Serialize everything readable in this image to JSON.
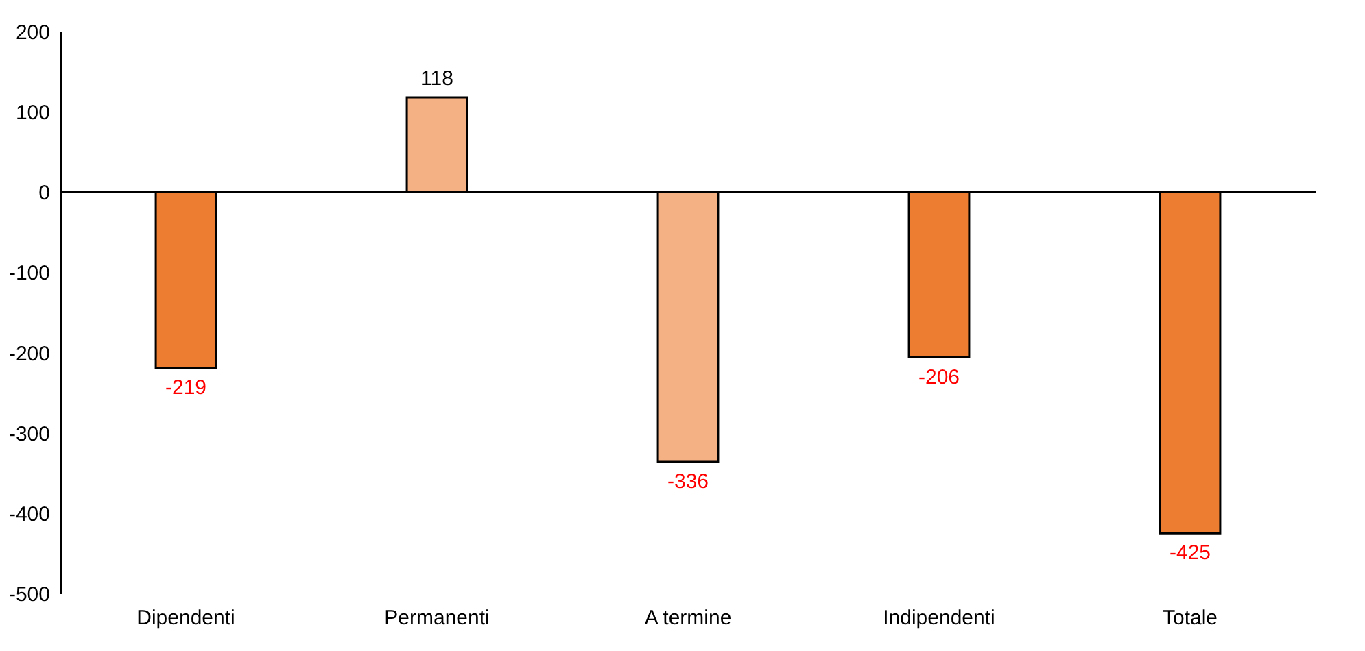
{
  "chart_data": {
    "type": "bar",
    "categories": [
      "Dipendenti",
      "Permanenti",
      "A termine",
      "Indipendenti",
      "Totale"
    ],
    "values": [
      -219,
      118,
      -336,
      -206,
      -425
    ],
    "colors": [
      "#ed7d31",
      "#f4b183",
      "#f4b183",
      "#ed7d31",
      "#ed7d31"
    ],
    "ylim": [
      -500,
      200
    ],
    "yticks": [
      -500,
      -400,
      -300,
      -200,
      -100,
      0,
      100,
      200
    ],
    "grid": false,
    "data_labels": true,
    "ref_lines": [
      {
        "axis": "y",
        "value": 0
      }
    ]
  }
}
